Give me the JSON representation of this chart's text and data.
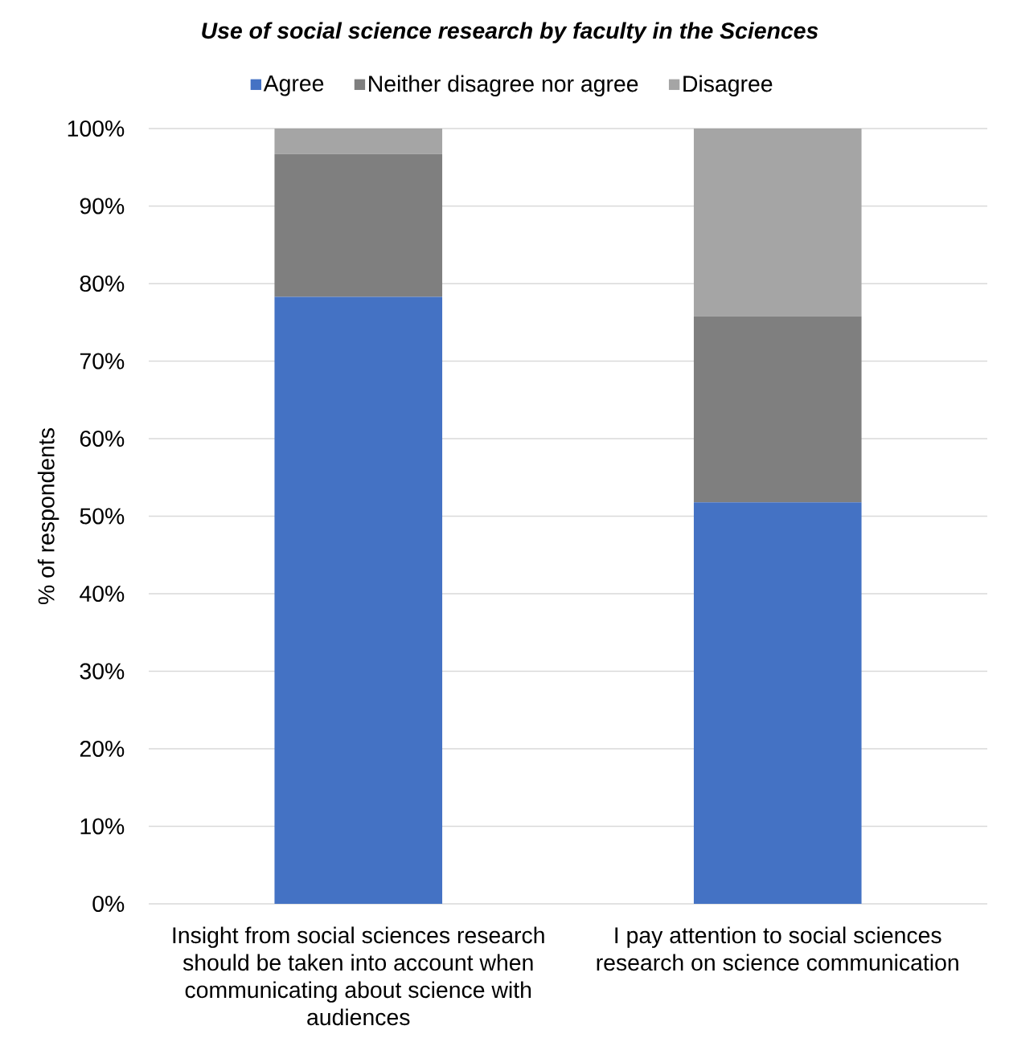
{
  "chart_data": {
    "type": "bar",
    "title": "Use of social science research by faculty in the Sciences",
    "ylabel": "% of respondents",
    "categories": [
      "Insight from social sciences research should be taken into account when communicating about science with audiences",
      "I pay attention to social sciences research on science communication"
    ],
    "series": [
      {
        "name": "Agree",
        "color": "#4472c4",
        "values": [
          78.3,
          51.8
        ]
      },
      {
        "name": "Neither disagree nor agree",
        "color": "#7f7f7f",
        "values": [
          18.4,
          24.0
        ]
      },
      {
        "name": "Disagree",
        "color": "#a5a5a5",
        "values": [
          3.3,
          24.2
        ]
      }
    ],
    "stacked": true,
    "ylim": [
      0,
      100
    ],
    "yticks": [
      {
        "value": 0,
        "label": "0%"
      },
      {
        "value": 10,
        "label": "10%"
      },
      {
        "value": 20,
        "label": "20%"
      },
      {
        "value": 30,
        "label": "30%"
      },
      {
        "value": 40,
        "label": "40%"
      },
      {
        "value": 50,
        "label": "50%"
      },
      {
        "value": 60,
        "label": "60%"
      },
      {
        "value": 70,
        "label": "70%"
      },
      {
        "value": 80,
        "label": "80%"
      },
      {
        "value": 90,
        "label": "90%"
      },
      {
        "value": 100,
        "label": "100%"
      }
    ],
    "grid": "y",
    "legend": "top"
  }
}
